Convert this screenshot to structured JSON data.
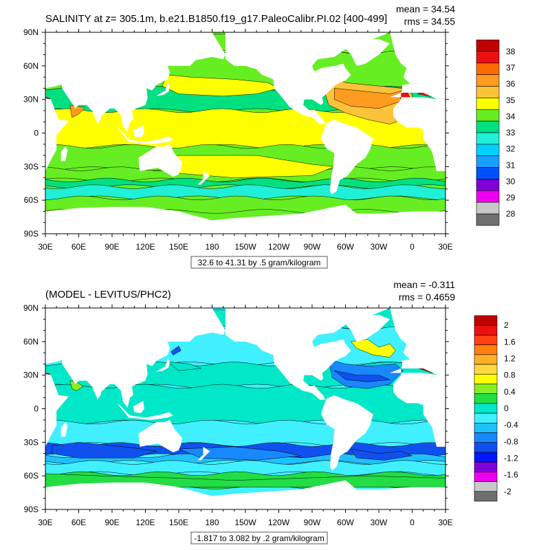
{
  "colors": {
    "land": "#ffffff",
    "contour": "#000000"
  },
  "chart_data": [
    {
      "type": "heatmap",
      "title": "SALINITY at z= 305.1m, b.e21.B1850.f19_g17.PaleoCalibr.PI.02 [400-499]",
      "stats": {
        "mean": "mean = 34.54",
        "rms": "rms = 34.55"
      },
      "x_ticks": [
        "30E",
        "60E",
        "90E",
        "120E",
        "150E",
        "180",
        "150W",
        "120W",
        "90W",
        "60W",
        "30W",
        "0",
        "30E"
      ],
      "y_ticks": [
        "90N",
        "60N",
        "30N",
        "0",
        "30S",
        "60S",
        "90S"
      ],
      "xlim": [
        30,
        390
      ],
      "ylim": [
        -90,
        90
      ],
      "info_label": "32.6 to 41.31 by .5 gram/kilogram",
      "colorbar": {
        "labels": [
          "38",
          "37",
          "36",
          "35",
          "34",
          "33",
          "32",
          "31",
          "30",
          "29",
          "28"
        ],
        "colors": [
          "#c00000",
          "#ee1010",
          "#ff6a00",
          "#ff9c20",
          "#fcc23a",
          "#ffff00",
          "#66ee22",
          "#00e080",
          "#20f0d8",
          "#00d0ff",
          "#18a0ff",
          "#0050ff",
          "#7f00d8",
          "#ee00ee",
          "#c8c8c8",
          "#6e6e6e"
        ]
      }
    },
    {
      "type": "heatmap",
      "title": "(MODEL - LEVITUS/PHC2)",
      "stats": {
        "mean": "mean = -0.311",
        "rms": "rms = 0.4659"
      },
      "x_ticks": [
        "30E",
        "60E",
        "90E",
        "120E",
        "150E",
        "180",
        "150W",
        "120W",
        "90W",
        "60W",
        "30W",
        "0",
        "30E"
      ],
      "y_ticks": [
        "90N",
        "60N",
        "30N",
        "0",
        "30S",
        "60S",
        "90S"
      ],
      "xlim": [
        30,
        390
      ],
      "ylim": [
        -90,
        90
      ],
      "info_label": "-1.817 to 3.082 by .2 gram/kilogram",
      "colorbar": {
        "labels": [
          "2",
          "1.6",
          "1.2",
          "0.8",
          "0.4",
          "0",
          "-0.4",
          "-0.8",
          "-1.2",
          "-1.6",
          "-2"
        ],
        "colors": [
          "#c00000",
          "#ee1010",
          "#ff4010",
          "#ff8010",
          "#ffb028",
          "#ffd840",
          "#ffff00",
          "#88ee22",
          "#22dd44",
          "#00e8c8",
          "#40f0ff",
          "#20c0ff",
          "#1888ff",
          "#1050ee",
          "#0018ff",
          "#7f00d8",
          "#ee00ee",
          "#c8c8c8",
          "#6e6e6e"
        ]
      }
    }
  ]
}
